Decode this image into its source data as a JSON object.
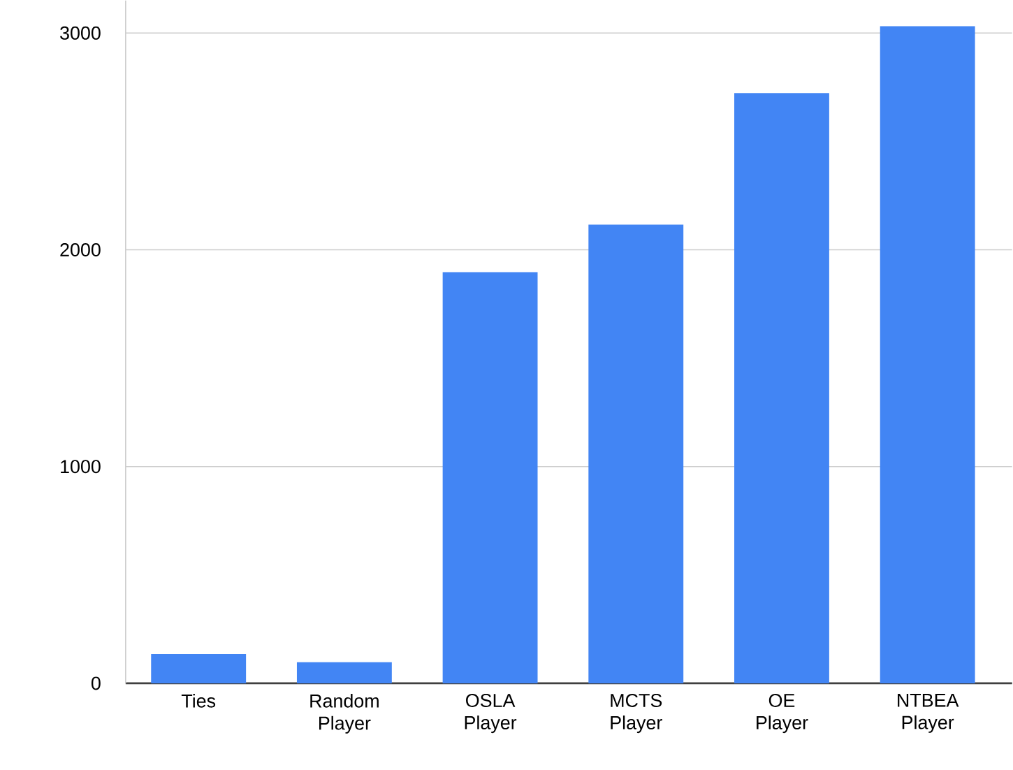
{
  "chart_data": {
    "type": "bar",
    "categories": [
      "Ties",
      "Random Player",
      "OSLA Player",
      "MCTS Player",
      "OE Player",
      "NTBEA Player"
    ],
    "values": [
      135,
      97,
      1897,
      2116,
      2723,
      3032
    ],
    "color": "#4285f4",
    "ylim": [
      0,
      3150
    ],
    "yticks": [
      0,
      1000,
      2000,
      3000
    ],
    "grid": "y"
  }
}
